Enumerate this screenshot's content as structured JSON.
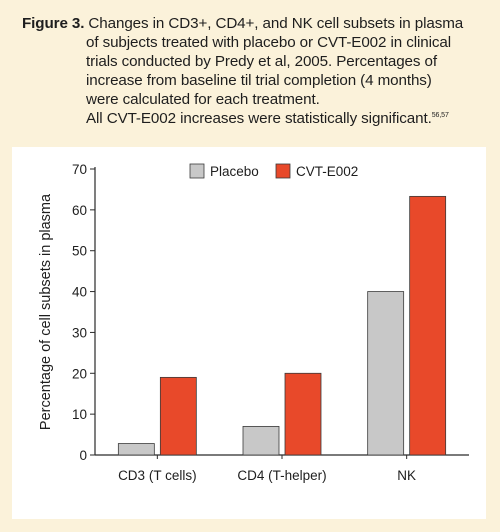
{
  "caption": {
    "label": "Figure 3.",
    "line1": "Changes in CD3+, CD4+, and NK cell subsets in plasma",
    "line2": "of subjects treated with placebo or CVT-E002 in clinical",
    "line3": "trials conducted by Predy et al, 2005. Percentages of",
    "line4": "increase from baseline til trial completion (4 months)",
    "line5": "were calculated for each treatment.",
    "line6": "All CVT-E002 increases were statistically significant.",
    "refs": "56,57"
  },
  "colors": {
    "background": "#fbf2da",
    "placebo": "#c8c8c8",
    "cvt": "#e8492a",
    "axis": "#2a2a2a"
  },
  "chart_data": {
    "type": "bar",
    "categories": [
      "CD3 (T cells)",
      "CD4 (T-helper)",
      "NK"
    ],
    "series": [
      {
        "name": "Placebo",
        "values": [
          2.8,
          7,
          40
        ]
      },
      {
        "name": "CVT-E002",
        "values": [
          19,
          20,
          63.3
        ]
      }
    ],
    "ylabel": "Percentage of cell subsets in plasma",
    "xlabel": "",
    "ylim": [
      0,
      70
    ],
    "yticks": [
      "0",
      "10",
      "20",
      "30",
      "40",
      "50",
      "60",
      "70"
    ],
    "legend_position": "top",
    "grid": false
  }
}
